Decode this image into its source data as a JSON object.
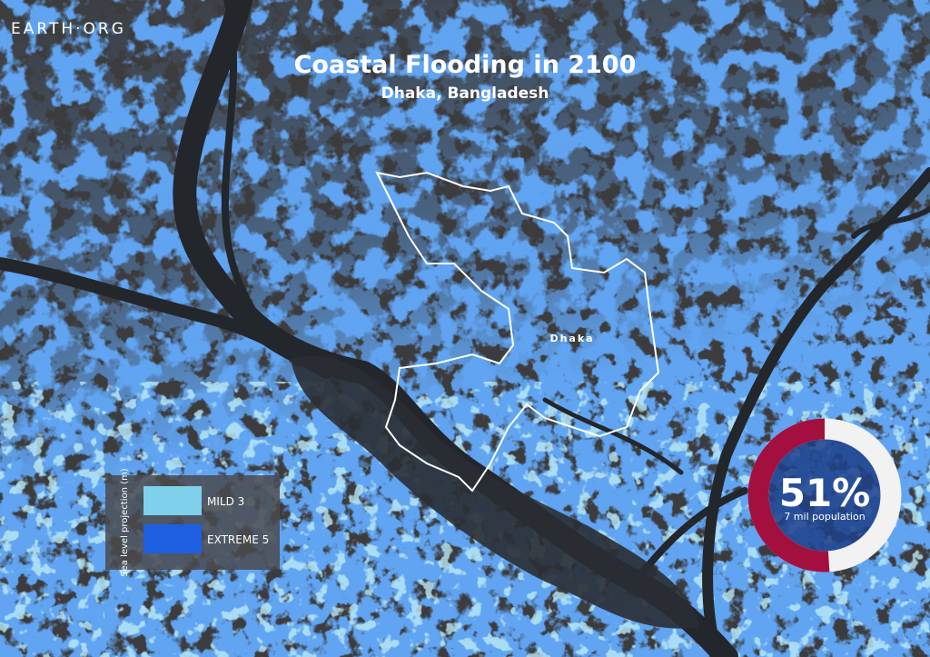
{
  "brand": "EARTH·ORG",
  "header": {
    "title": "Coastal Flooding in 2100",
    "subtitle": "Dhaka, Bangladesh"
  },
  "map": {
    "city_label": "Dhaka"
  },
  "legend": {
    "title": "Sea level projection (m)",
    "items": [
      {
        "label": "MILD 3",
        "color": "#7fd0ea"
      },
      {
        "label": "EXTREME 5",
        "color": "#1d5fe0"
      }
    ]
  },
  "stat": {
    "value": 51,
    "label": "51%",
    "caption": "7 mil population"
  }
}
